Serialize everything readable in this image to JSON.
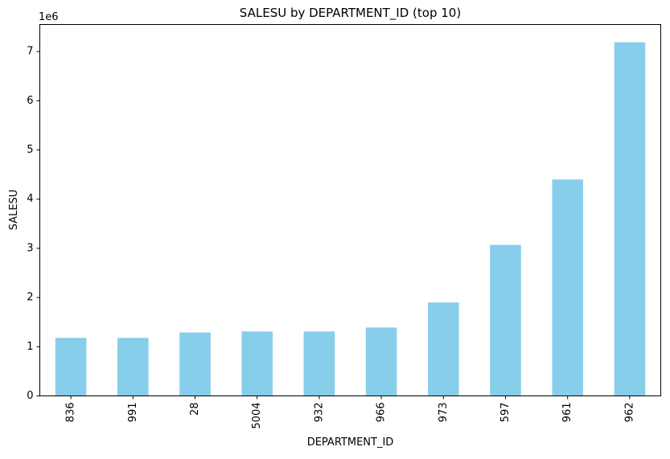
{
  "colors": {
    "bar": "#87ceeb",
    "axis": "#000000",
    "background": "#ffffff"
  },
  "chart_data": {
    "type": "bar",
    "title": "SALESU by DEPARTMENT_ID (top 10)",
    "xlabel": "DEPARTMENT_ID",
    "ylabel": "SALESU",
    "y_offset_text": "1e6",
    "categories": [
      "836",
      "991",
      "28",
      "5004",
      "932",
      "966",
      "973",
      "597",
      "961",
      "962"
    ],
    "values": [
      1180000,
      1180000,
      1290000,
      1310000,
      1310000,
      1390000,
      1900000,
      3070000,
      4400000,
      7190000
    ],
    "ylim": [
      0,
      7550000
    ],
    "yticks": [
      0,
      1,
      2,
      3,
      4,
      5,
      6,
      7
    ],
    "ytick_multiplier": 1000000,
    "grid": false,
    "legend": "none",
    "x_tick_rotation": "vertical"
  }
}
